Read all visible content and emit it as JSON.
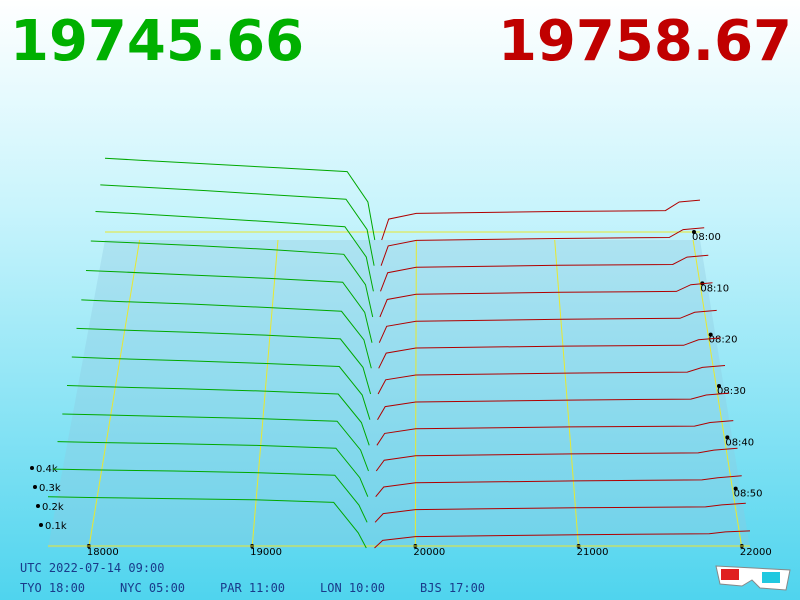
{
  "header": {
    "bid": "19745.66",
    "ask": "19758.67"
  },
  "chart_data": {
    "type": "depth3d",
    "xlim": [
      17750,
      22050
    ],
    "xticks": [
      18000,
      19000,
      20000,
      21000,
      22000
    ],
    "zticks": [
      {
        "value": 100,
        "label": "0.1k"
      },
      {
        "value": 200,
        "label": "0.2k"
      },
      {
        "value": 300,
        "label": "0.3k"
      },
      {
        "value": 400,
        "label": "0.4k"
      }
    ],
    "times": [
      "08:00",
      null,
      "08:10",
      null,
      "08:20",
      null,
      "08:30",
      null,
      "08:40",
      null,
      "08:50",
      null,
      null
    ],
    "bids": {
      "color": "#00a800",
      "prices": [
        17750,
        18000,
        18500,
        19000,
        19500,
        19650,
        19700
      ],
      "layers": [
        [
          430,
          420,
          400,
          380,
          360,
          200,
          0
        ],
        [
          425,
          415,
          395,
          372,
          350,
          190,
          0
        ],
        [
          420,
          410,
          388,
          365,
          340,
          180,
          0
        ],
        [
          400,
          392,
          375,
          355,
          330,
          170,
          0
        ],
        [
          380,
          372,
          355,
          338,
          318,
          160,
          0
        ],
        [
          360,
          352,
          338,
          320,
          300,
          150,
          0
        ],
        [
          345,
          338,
          325,
          310,
          290,
          140,
          0
        ],
        [
          330,
          322,
          310,
          296,
          280,
          130,
          0
        ],
        [
          315,
          308,
          298,
          286,
          270,
          120,
          0
        ],
        [
          300,
          295,
          286,
          276,
          262,
          110,
          0
        ],
        [
          290,
          285,
          278,
          270,
          255,
          100,
          0
        ],
        [
          280,
          276,
          270,
          262,
          248,
          90,
          0
        ],
        [
          270,
          266,
          260,
          254,
          240,
          80,
          0
        ]
      ]
    },
    "asks": {
      "color": "#b00000",
      "prices": [
        19750,
        19800,
        20000,
        21000,
        21800,
        21900,
        22050
      ],
      "layers": [
        [
          0,
          110,
          140,
          150,
          155,
          200,
          210
        ],
        [
          0,
          104,
          133,
          143,
          148,
          190,
          200
        ],
        [
          0,
          98,
          127,
          137,
          141,
          180,
          190
        ],
        [
          0,
          92,
          120,
          130,
          135,
          170,
          180
        ],
        [
          0,
          86,
          113,
          123,
          128,
          160,
          170
        ],
        [
          0,
          80,
          107,
          117,
          121,
          150,
          160
        ],
        [
          0,
          75,
          100,
          110,
          115,
          140,
          150
        ],
        [
          0,
          69,
          93,
          103,
          108,
          130,
          140
        ],
        [
          0,
          63,
          87,
          97,
          101,
          120,
          130
        ],
        [
          0,
          57,
          80,
          90,
          95,
          110,
          120
        ],
        [
          0,
          51,
          73,
          83,
          88,
          100,
          110
        ],
        [
          0,
          46,
          67,
          77,
          81,
          92,
          100
        ],
        [
          0,
          40,
          60,
          70,
          75,
          85,
          90
        ]
      ]
    }
  },
  "footer": {
    "utc": "UTC 2022-07-14 09:00",
    "zones": [
      "TYO 18:00",
      "NYC 05:00",
      "PAR 11:00",
      "LON 10:00",
      "BJS 17:00"
    ]
  }
}
